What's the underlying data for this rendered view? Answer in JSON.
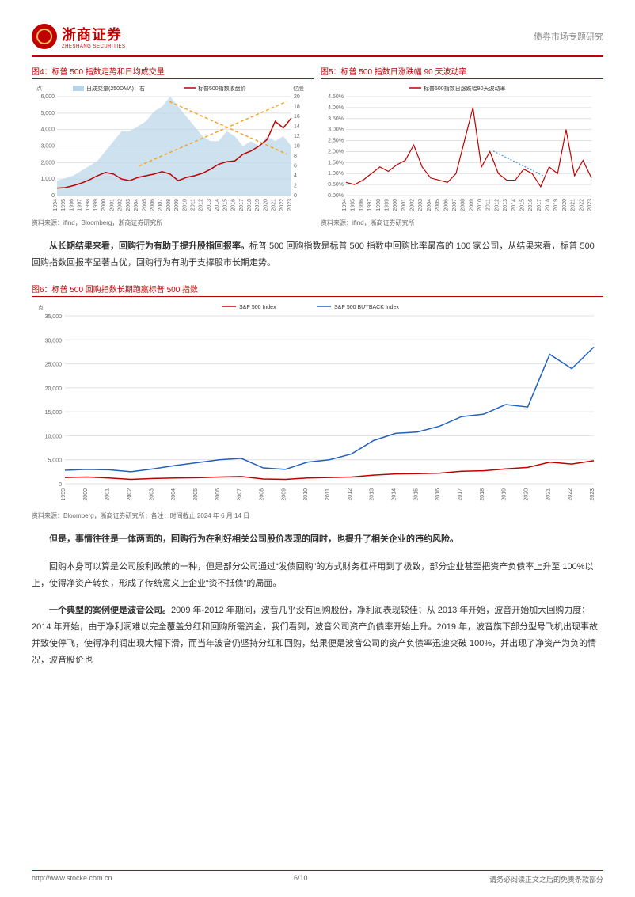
{
  "header": {
    "company_cn": "浙商证券",
    "company_en": "ZHESHANG SECURITIES",
    "doc_type": "债券市场专题研究"
  },
  "chart4": {
    "title": "图4：标普 500 指数走势和日均成交量",
    "source": "资料来源：ifind，Bloomberg，浙商证券研究所",
    "type": "dual-axis-area-line",
    "legend1": "日成交量(250DMA)：右",
    "legend2": "标普500指数收盘价",
    "y1_label": "点",
    "y2_label": "亿股",
    "y1_ticks": [
      "0",
      "1,000",
      "2,000",
      "3,000",
      "4,000",
      "5,000",
      "6,000"
    ],
    "y2_ticks": [
      "0",
      "2",
      "4",
      "6",
      "8",
      "10",
      "12",
      "14",
      "16",
      "18",
      "20"
    ],
    "x_ticks": [
      "1994",
      "1995",
      "1996",
      "1997",
      "1998",
      "1999",
      "2000",
      "2001",
      "2002",
      "2003",
      "2004",
      "2005",
      "2006",
      "2007",
      "2008",
      "2009",
      "2010",
      "2011",
      "2012",
      "2013",
      "2014",
      "2015",
      "2016",
      "2017",
      "2018",
      "2019",
      "2020",
      "2021",
      "2022",
      "2023"
    ],
    "line_color": "#c00000",
    "area_color": "#b8d4e8",
    "trend_color": "#f5a623",
    "grid_color": "#e0e0e0",
    "bg_color": "#ffffff",
    "price_series": [
      450,
      480,
      600,
      750,
      950,
      1200,
      1400,
      1300,
      1000,
      900,
      1100,
      1200,
      1300,
      1450,
      1300,
      900,
      1100,
      1200,
      1350,
      1600,
      1900,
      2050,
      2100,
      2500,
      2700,
      3000,
      3400,
      4500,
      4100,
      4700
    ],
    "volume_series": [
      3,
      3.5,
      4,
      5,
      6,
      7,
      9,
      11,
      13,
      13,
      14,
      15,
      17,
      18,
      20,
      18,
      16,
      14,
      12,
      11,
      11,
      13,
      12,
      10,
      11,
      10,
      12,
      11,
      12,
      10
    ]
  },
  "chart5": {
    "title": "图5：标普 500 指数日涨跌幅 90 天波动率",
    "source": "资料来源：ifind，浙商证券研究所",
    "type": "line",
    "legend": "标普500指数日涨跌幅90天波动率",
    "y_ticks": [
      "0.00%",
      "0.50%",
      "1.00%",
      "1.50%",
      "2.00%",
      "2.50%",
      "3.00%",
      "3.50%",
      "4.00%",
      "4.50%"
    ],
    "x_ticks": [
      "1994",
      "1995",
      "1996",
      "1997",
      "1998",
      "1999",
      "2000",
      "2001",
      "2002",
      "2003",
      "2004",
      "2005",
      "2006",
      "2007",
      "2008",
      "2009",
      "2010",
      "2011",
      "2012",
      "2013",
      "2014",
      "2015",
      "2016",
      "2017",
      "2018",
      "2019",
      "2020",
      "2021",
      "2022",
      "2023"
    ],
    "line_color": "#c00000",
    "trend_color": "#4a9fd8",
    "grid_color": "#e0e0e0",
    "series": [
      0.6,
      0.5,
      0.7,
      1.0,
      1.3,
      1.1,
      1.4,
      1.6,
      2.3,
      1.3,
      0.8,
      0.7,
      0.6,
      1.0,
      2.5,
      4.0,
      1.3,
      2.0,
      1.0,
      0.7,
      0.7,
      1.2,
      1.0,
      0.4,
      1.3,
      1.0,
      3.0,
      0.9,
      1.6,
      0.8
    ]
  },
  "para1": "从长期结果来看，回购行为有助于提升股指回报率。",
  "para1b": "标普 500 回购指数是标普 500 指数中回购比率最高的 100 家公司，从结果来看，标普 500 回购指数回报率显著占优，回购行为有助于支撑股市长期走势。",
  "chart6": {
    "title": "图6：标普 500 回购指数长期跑赢标普 500 指数",
    "source": "资料来源：Bloomberg，浙商证券研究所；备注：时间截止 2024 年 6 月 14 日",
    "type": "line",
    "legend1": "S&P 500 Index",
    "legend2": "S&P 500 BUYBACK Index",
    "y_label": "点",
    "y_ticks": [
      "0",
      "5,000",
      "10,000",
      "15,000",
      "20,000",
      "25,000",
      "30,000",
      "35,000"
    ],
    "x_ticks": [
      "1999",
      "2000",
      "2001",
      "2002",
      "2003",
      "2004",
      "2005",
      "2006",
      "2007",
      "2008",
      "2009",
      "2010",
      "2011",
      "2012",
      "2013",
      "2014",
      "2015",
      "2016",
      "2017",
      "2018",
      "2019",
      "2020",
      "2021",
      "2022",
      "2023"
    ],
    "line1_color": "#c00000",
    "line2_color": "#2060c0",
    "grid_color": "#e0e0e0",
    "sp500": [
      1300,
      1400,
      1200,
      900,
      1100,
      1200,
      1250,
      1400,
      1500,
      1000,
      900,
      1200,
      1300,
      1400,
      1800,
      2050,
      2100,
      2200,
      2600,
      2700,
      3100,
      3400,
      4500,
      4100,
      4800
    ],
    "buyback": [
      2800,
      3000,
      2900,
      2500,
      3100,
      3800,
      4400,
      5000,
      5300,
      3300,
      3000,
      4500,
      5000,
      6200,
      9000,
      10500,
      10800,
      12000,
      14000,
      14500,
      16500,
      16000,
      27000,
      24000,
      28500
    ]
  },
  "para2": "但是，事情往往是一体两面的，回购行为在利好相关公司股价表现的同时，也提升了相关企业的违约风险。",
  "para3": "回购本身可以算是公司股利政策的一种，但是部分公司通过“发债回购”的方式财务杠杆用到了极致，部分企业甚至把资产负债率上升至 100%以上，使得净资产转负，形成了传统意义上企业“资不抵债”的局面。",
  "para4a": "一个典型的案例便是波音公司。",
  "para4b": "2009 年-2012 年期间，波音几乎没有回购股份，净利润表现较佳；从 2013 年开始，波音开始加大回购力度；2014 年开始，由于净利润难以完全覆盖分红和回购所需资金，我们看到，波音公司资产负债率开始上升。2019 年，波音旗下部分型号飞机出现事故并致使停飞，使得净利润出现大幅下滑，而当年波音仍坚持分红和回购，结果便是波音公司的资产负债率迅速突破 100%，并出现了净资产为负的情况，波音股价也",
  "footer": {
    "url": "http://www.stocke.com.cn",
    "page": "6/10",
    "disclaimer": "请务必阅读正文之后的免责条款部分"
  }
}
